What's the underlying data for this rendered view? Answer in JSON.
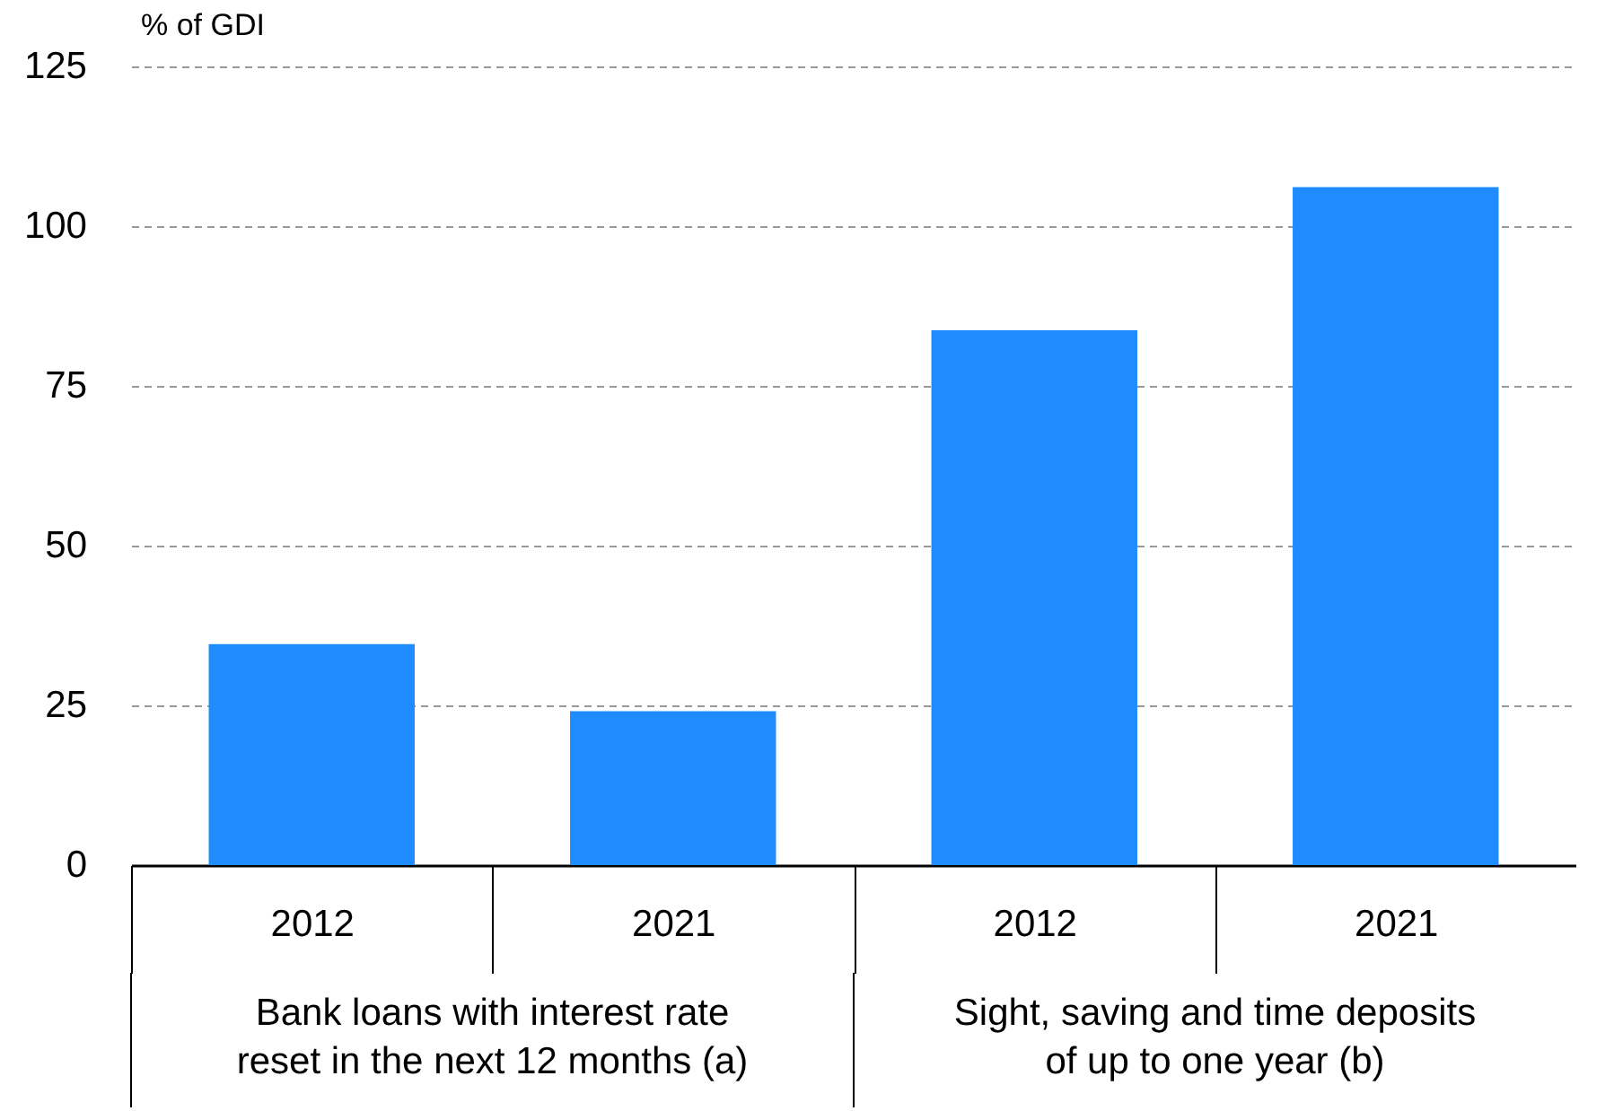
{
  "chart_data": {
    "type": "bar",
    "ylabel": "% of GDI",
    "categories": [
      "2012",
      "2021",
      "2012",
      "2021"
    ],
    "values": [
      34.6,
      24.1,
      83.7,
      106.1
    ],
    "color": "#1e8cff",
    "ylim": [
      0,
      125
    ],
    "yticks": [
      0,
      25,
      50,
      75,
      100,
      125
    ],
    "grid": "y",
    "annotations": [
      "Bank loans with interest rate\nreset in the next 12 months (a)",
      "Sight, saving and time deposits\nof up to one year (b)"
    ]
  }
}
